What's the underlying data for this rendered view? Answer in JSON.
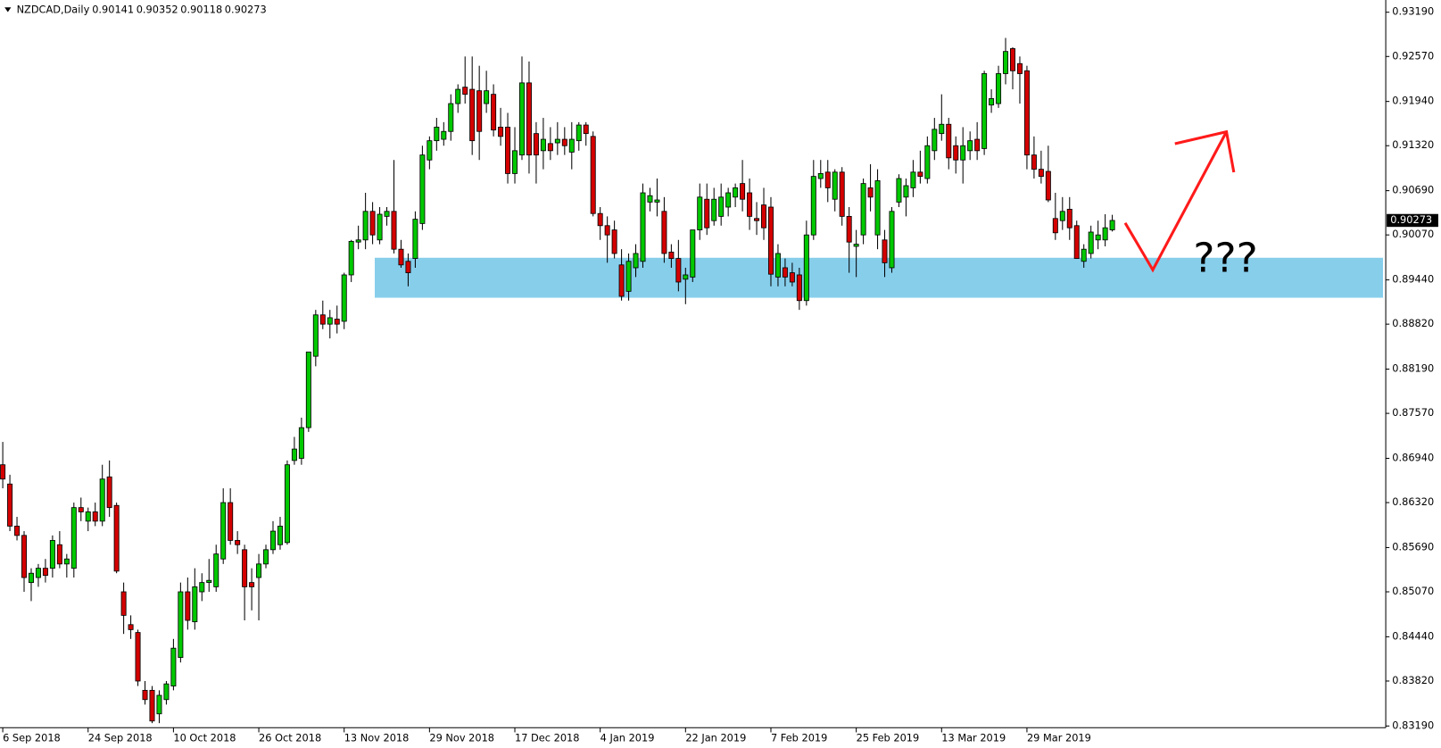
{
  "chart_data": {
    "type": "candlestick",
    "symbol": "NZDCAD,Daily",
    "annotation": "???",
    "up_color": "#00c800",
    "down_color": "#d40000",
    "zone": {
      "ylim": [
        0.8919,
        0.8975
      ],
      "color": "#87ceeb"
    },
    "ylim": [
      0.83166,
      0.93361
    ],
    "yticks": [
      {
        "value": 0.9319,
        "label": "0.93190"
      },
      {
        "value": 0.9257,
        "label": "0.92570"
      },
      {
        "value": 0.9194,
        "label": "0.91940"
      },
      {
        "value": 0.9132,
        "label": "0.91320"
      },
      {
        "value": 0.9069,
        "label": "0.90690"
      },
      {
        "value": 0.9007,
        "label": "0.90070"
      },
      {
        "value": 0.8944,
        "label": "0.89440"
      },
      {
        "value": 0.8882,
        "label": "0.88820"
      },
      {
        "value": 0.8819,
        "label": "0.88190"
      },
      {
        "value": 0.8757,
        "label": "0.87570"
      },
      {
        "value": 0.8694,
        "label": "0.86940"
      },
      {
        "value": 0.8632,
        "label": "0.86320"
      },
      {
        "value": 0.8569,
        "label": "0.85690"
      },
      {
        "value": 0.8507,
        "label": "0.85070"
      },
      {
        "value": 0.8444,
        "label": "0.84440"
      },
      {
        "value": 0.8382,
        "label": "0.83820"
      },
      {
        "value": 0.8319,
        "label": "0.83190"
      }
    ],
    "categories": [
      "6 Sep 2018",
      null,
      null,
      null,
      null,
      null,
      null,
      null,
      null,
      null,
      null,
      null,
      "24 Sep 2018",
      null,
      null,
      null,
      null,
      null,
      null,
      null,
      null,
      null,
      null,
      null,
      "10 Oct 2018",
      null,
      null,
      null,
      null,
      null,
      null,
      null,
      null,
      null,
      null,
      null,
      "26 Oct 2018",
      null,
      null,
      null,
      null,
      null,
      null,
      null,
      null,
      null,
      null,
      null,
      "13 Nov 2018",
      null,
      null,
      null,
      null,
      null,
      null,
      null,
      null,
      null,
      null,
      null,
      "29 Nov 2018",
      null,
      null,
      null,
      null,
      null,
      null,
      null,
      null,
      null,
      null,
      null,
      "17 Dec 2018",
      null,
      null,
      null,
      null,
      null,
      null,
      null,
      null,
      null,
      null,
      null,
      "4 Jan 2019",
      null,
      null,
      null,
      null,
      null,
      null,
      null,
      null,
      null,
      null,
      null,
      "22 Jan 2019",
      null,
      null,
      null,
      null,
      null,
      null,
      null,
      null,
      null,
      null,
      null,
      "7 Feb 2019",
      null,
      null,
      null,
      null,
      null,
      null,
      null,
      null,
      null,
      null,
      null,
      "25 Feb 2019",
      null,
      null,
      null,
      null,
      null,
      null,
      null,
      null,
      null,
      null,
      null,
      "13 Mar 2019",
      null,
      null,
      null,
      null,
      null,
      null,
      null,
      null,
      null,
      null,
      null,
      "29 Mar 2019",
      null,
      null,
      null,
      null,
      null,
      null,
      null,
      null,
      null,
      null,
      null,
      null
    ],
    "open": [
      0.8685,
      0.8658,
      0.8599,
      0.8586,
      0.852,
      0.8527,
      0.854,
      0.854,
      0.8573,
      0.8546,
      0.854,
      0.8625,
      0.8606,
      0.8619,
      0.8606,
      0.8668,
      0.8628,
      0.8507,
      0.8461,
      0.845,
      0.8369,
      0.8369,
      0.8336,
      0.8356,
      0.8375,
      0.8415,
      0.8507,
      0.8465,
      0.8507,
      0.852,
      0.8514,
      0.8553,
      0.8632,
      0.8579,
      0.8566,
      0.852,
      0.8527,
      0.8546,
      0.8566,
      0.8573,
      0.8576,
      0.8691,
      0.8694,
      0.8737,
      0.8837,
      0.8895,
      0.8882,
      0.8889,
      0.8886,
      0.8951,
      0.8997,
      0.9,
      0.904,
      0.9,
      0.9033,
      0.904,
      0.8987,
      0.897,
      0.8974,
      0.9023,
      0.9112,
      0.9139,
      0.9141,
      0.9152,
      0.9191,
      0.9214,
      0.9211,
      0.9209,
      0.9191,
      0.9204,
      0.9158,
      0.9158,
      0.9093,
      0.9119,
      0.922,
      0.9149,
      0.9125,
      0.9135,
      0.9136,
      0.9141,
      0.9123,
      0.9139,
      0.9161,
      0.9145,
      0.9037,
      0.902,
      0.9014,
      0.8965,
      0.8928,
      0.8961,
      0.897,
      0.9053,
      0.9053,
      0.904,
      0.8983,
      0.8974,
      0.8945,
      0.8948,
      0.9014,
      0.9057,
      0.9027,
      0.9033,
      0.9046,
      0.906,
      0.9079,
      0.9066,
      0.903,
      0.9049,
      0.9046,
      0.8948,
      0.8961,
      0.8954,
      0.8951,
      0.8915,
      0.9007,
      0.9086,
      0.9095,
      0.9057,
      0.9095,
      0.9033,
      0.8991,
      0.9007,
      0.9073,
      0.9007,
      0.9,
      0.8961,
      0.9053,
      0.906,
      0.9073,
      0.9095,
      0.9086,
      0.9125,
      0.9149,
      0.9162,
      0.9132,
      0.9112,
      0.9125,
      0.9141,
      0.9128,
      0.9189,
      0.9191,
      0.9233,
      0.9268,
      0.9247,
      0.9237,
      0.9119,
      0.9099,
      0.9096,
      0.903,
      0.9027,
      0.9043,
      0.902,
      0.897,
      0.8981,
      0.9,
      0.9,
      0.90141
    ],
    "high": [
      0.8717,
      0.8671,
      0.8612,
      0.8592,
      0.854,
      0.8546,
      0.8553,
      0.8586,
      0.8592,
      0.856,
      0.8632,
      0.8639,
      0.8625,
      0.8632,
      0.8685,
      0.8691,
      0.8632,
      0.852,
      0.8474,
      0.8454,
      0.8382,
      0.8375,
      0.8369,
      0.8382,
      0.8441,
      0.852,
      0.8527,
      0.854,
      0.8533,
      0.8553,
      0.8573,
      0.8652,
      0.8652,
      0.8592,
      0.8573,
      0.854,
      0.856,
      0.8573,
      0.8606,
      0.8612,
      0.8691,
      0.8724,
      0.8751,
      0.8843,
      0.8902,
      0.8915,
      0.8902,
      0.8908,
      0.8954,
      0.9,
      0.902,
      0.9066,
      0.9053,
      0.9046,
      0.9046,
      0.9112,
      0.9,
      0.8981,
      0.904,
      0.9132,
      0.9145,
      0.9171,
      0.9165,
      0.9204,
      0.9218,
      0.9257,
      0.9257,
      0.9244,
      0.9237,
      0.9218,
      0.9185,
      0.9178,
      0.9158,
      0.9257,
      0.925,
      0.9165,
      0.9171,
      0.9158,
      0.9165,
      0.9158,
      0.9165,
      0.9165,
      0.9165,
      0.9152,
      0.9046,
      0.9033,
      0.9027,
      0.8987,
      0.8981,
      0.8994,
      0.9079,
      0.9073,
      0.9086,
      0.906,
      0.8994,
      0.9,
      0.8961,
      0.9014,
      0.9079,
      0.9079,
      0.9073,
      0.9079,
      0.9073,
      0.9079,
      0.9112,
      0.9086,
      0.9053,
      0.9073,
      0.906,
      0.8994,
      0.8974,
      0.8968,
      0.8961,
      0.9027,
      0.9112,
      0.9112,
      0.9112,
      0.9099,
      0.9102,
      0.9046,
      0.9014,
      0.9086,
      0.9106,
      0.9099,
      0.9014,
      0.9046,
      0.9092,
      0.9086,
      0.9112,
      0.9125,
      0.9145,
      0.9171,
      0.9204,
      0.9171,
      0.9145,
      0.9158,
      0.9152,
      0.9165,
      0.9237,
      0.9211,
      0.9244,
      0.9283,
      0.927,
      0.9257,
      0.9244,
      0.9145,
      0.9125,
      0.9132,
      0.9066,
      0.906,
      0.906,
      0.9027,
      0.8994,
      0.902,
      0.9027,
      0.9036,
      0.90352
    ],
    "low": [
      0.8652,
      0.8592,
      0.8579,
      0.8507,
      0.8494,
      0.8514,
      0.852,
      0.8527,
      0.854,
      0.8527,
      0.8527,
      0.8606,
      0.8592,
      0.8599,
      0.8599,
      0.8612,
      0.8533,
      0.8448,
      0.8441,
      0.8375,
      0.8349,
      0.8323,
      0.8323,
      0.8349,
      0.8369,
      0.8408,
      0.8454,
      0.8454,
      0.8494,
      0.8507,
      0.8507,
      0.8546,
      0.8573,
      0.856,
      0.8467,
      0.8481,
      0.8467,
      0.854,
      0.856,
      0.8566,
      0.8573,
      0.8685,
      0.8685,
      0.8731,
      0.8823,
      0.8875,
      0.8862,
      0.8869,
      0.8875,
      0.8941,
      0.8987,
      0.8987,
      0.8994,
      0.8994,
      0.902,
      0.8981,
      0.8961,
      0.8935,
      0.8961,
      0.9014,
      0.9099,
      0.9125,
      0.9132,
      0.9139,
      0.9178,
      0.9191,
      0.9119,
      0.9112,
      0.9178,
      0.9145,
      0.9132,
      0.9079,
      0.9079,
      0.9112,
      0.9093,
      0.9079,
      0.9099,
      0.9112,
      0.9119,
      0.9119,
      0.9099,
      0.9125,
      0.9132,
      0.9033,
      0.9,
      0.8968,
      0.8974,
      0.8915,
      0.8915,
      0.8948,
      0.8961,
      0.904,
      0.9033,
      0.8968,
      0.8961,
      0.8928,
      0.891,
      0.8941,
      0.9,
      0.9007,
      0.902,
      0.902,
      0.9033,
      0.9046,
      0.904,
      0.9014,
      0.9007,
      0.9,
      0.8935,
      0.8935,
      0.8935,
      0.8935,
      0.8902,
      0.8908,
      0.9,
      0.9073,
      0.9053,
      0.904,
      0.902,
      0.8954,
      0.8948,
      0.8994,
      0.904,
      0.8987,
      0.8948,
      0.8954,
      0.9046,
      0.9033,
      0.906,
      0.9079,
      0.9079,
      0.9112,
      0.9139,
      0.9099,
      0.9093,
      0.9079,
      0.9112,
      0.9112,
      0.9119,
      0.9178,
      0.9185,
      0.9218,
      0.9211,
      0.9191,
      0.9099,
      0.9086,
      0.9079,
      0.9053,
      0.9,
      0.9014,
      0.9,
      0.8974,
      0.8961,
      0.8974,
      0.8987,
      0.8991,
      0.90118
    ],
    "close": [
      0.8665,
      0.8599,
      0.8586,
      0.8527,
      0.8533,
      0.854,
      0.853,
      0.8579,
      0.8546,
      0.8553,
      0.8625,
      0.8619,
      0.8619,
      0.8606,
      0.8665,
      0.8625,
      0.8536,
      0.8474,
      0.8454,
      0.8382,
      0.8356,
      0.8326,
      0.8362,
      0.8378,
      0.8428,
      0.8507,
      0.8467,
      0.8514,
      0.852,
      0.8523,
      0.856,
      0.8632,
      0.8579,
      0.8573,
      0.8514,
      0.8514,
      0.8546,
      0.8566,
      0.8592,
      0.8599,
      0.8685,
      0.8707,
      0.8737,
      0.8843,
      0.8895,
      0.8882,
      0.8891,
      0.8882,
      0.8951,
      0.8998,
      0.9,
      0.904,
      0.9007,
      0.9036,
      0.904,
      0.8987,
      0.8965,
      0.8954,
      0.9029,
      0.9119,
      0.9139,
      0.9158,
      0.9152,
      0.9191,
      0.9211,
      0.9204,
      0.9139,
      0.9152,
      0.9209,
      0.9154,
      0.9145,
      0.9093,
      0.9125,
      0.922,
      0.9119,
      0.9119,
      0.9141,
      0.9125,
      0.9141,
      0.9132,
      0.9141,
      0.9161,
      0.9149,
      0.9037,
      0.902,
      0.9007,
      0.8981,
      0.8921,
      0.897,
      0.8981,
      0.9066,
      0.9062,
      0.9056,
      0.8981,
      0.8974,
      0.8941,
      0.8951,
      0.9014,
      0.906,
      0.9017,
      0.9057,
      0.906,
      0.9066,
      0.9073,
      0.9057,
      0.9033,
      0.9027,
      0.9017,
      0.8952,
      0.8981,
      0.8948,
      0.8941,
      0.8915,
      0.9007,
      0.9089,
      0.9093,
      0.9073,
      0.9095,
      0.9033,
      0.8997,
      0.8994,
      0.9079,
      0.906,
      0.9083,
      0.8968,
      0.904,
      0.9086,
      0.9076,
      0.9095,
      0.9089,
      0.9132,
      0.9155,
      0.9162,
      0.9115,
      0.9112,
      0.9132,
      0.9139,
      0.9125,
      0.9233,
      0.9198,
      0.9233,
      0.9264,
      0.9237,
      0.9233,
      0.9119,
      0.9099,
      0.9089,
      0.9056,
      0.901,
      0.904,
      0.9017,
      0.8974,
      0.8987,
      0.9011,
      0.9007,
      0.9017,
      0.90273
    ]
  }
}
